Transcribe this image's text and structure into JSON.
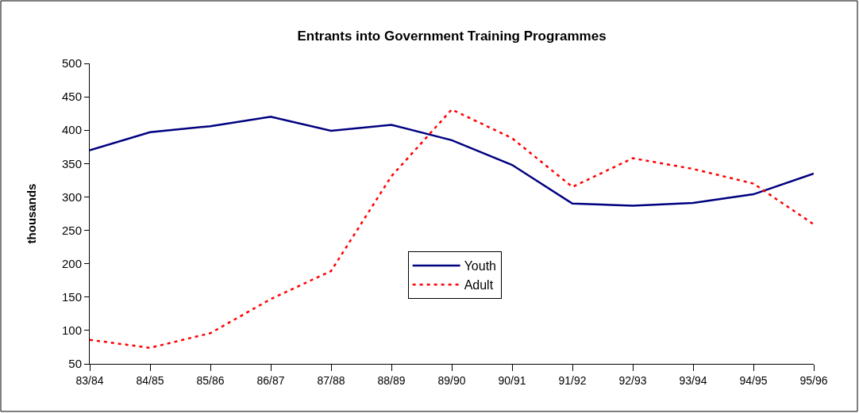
{
  "chart_data": {
    "type": "line",
    "title": "Entrants into Government Training Programmes",
    "ylabel": "thousands",
    "categories": [
      "83/84",
      "84/85",
      "85/86",
      "86/87",
      "87/88",
      "88/89",
      "89/90",
      "90/91",
      "91/92",
      "92/93",
      "93/94",
      "94/95",
      "95/96"
    ],
    "series": [
      {
        "name": "Youth",
        "color": "#000080",
        "line_style": "solid",
        "values": [
          370,
          397,
          406,
          420,
          399,
          408,
          385,
          348,
          290,
          287,
          291,
          304,
          335
        ]
      },
      {
        "name": "Adult",
        "color": "#ff0000",
        "line_style": "dotted",
        "values": [
          86,
          74,
          96,
          147,
          189,
          331,
          431,
          388,
          315,
          358,
          342,
          320,
          259
        ]
      }
    ],
    "ylim": [
      50,
      500
    ],
    "yticks": [
      50,
      100,
      150,
      200,
      250,
      300,
      350,
      400,
      450,
      500
    ],
    "grid": false,
    "legend": "bottom"
  }
}
